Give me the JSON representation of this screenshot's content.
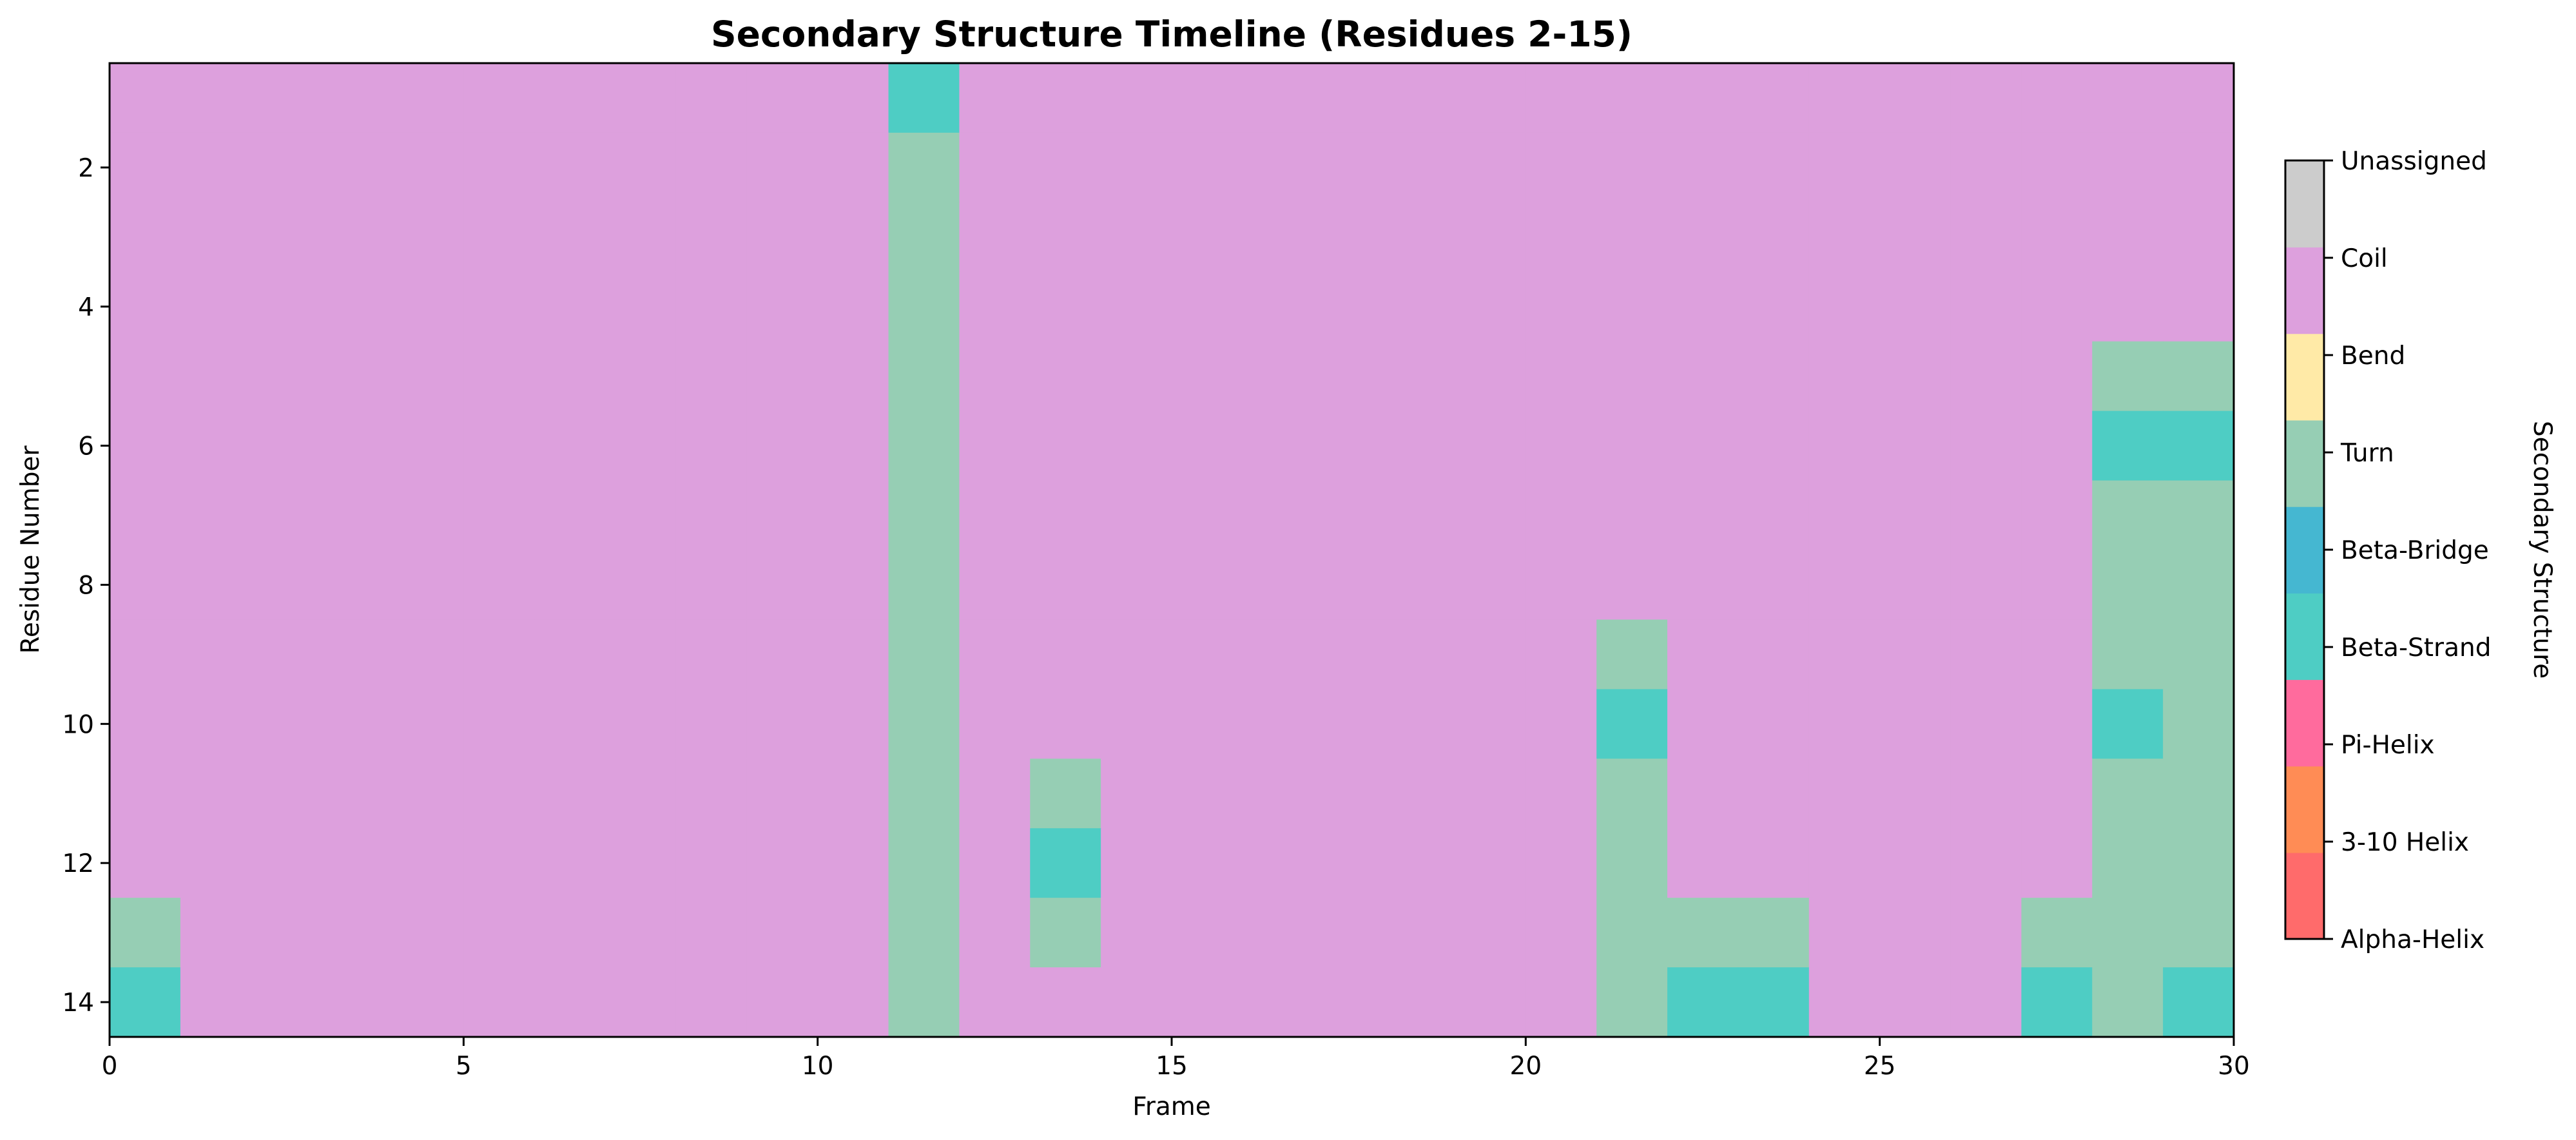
{
  "chart_data": {
    "type": "heatmap",
    "title": "Secondary Structure Timeline (Residues 2-15)",
    "xlabel": "Frame",
    "ylabel": "Residue Number",
    "xlim": [
      0,
      30
    ],
    "ylim": [
      15,
      1
    ],
    "x_ticks": [
      "0",
      "5",
      "10",
      "15",
      "20",
      "25",
      "30"
    ],
    "y_ticks": [
      "2",
      "4",
      "6",
      "8",
      "10",
      "12",
      "14"
    ],
    "frames": 30,
    "residues": [
      1,
      2,
      3,
      4,
      5,
      6,
      7,
      8,
      9,
      10,
      11,
      12,
      13,
      14
    ],
    "grid": false,
    "colorbar": {
      "label": "Secondary Structure",
      "position": "right",
      "categories": [
        {
          "name": "Alpha-Helix",
          "color": "#ff6b6b"
        },
        {
          "name": "3-10 Helix",
          "color": "#ff8c55"
        },
        {
          "name": "Pi-Helix",
          "color": "#ff6b9d"
        },
        {
          "name": "Beta-Strand",
          "color": "#4ecdc4"
        },
        {
          "name": "Beta-Bridge",
          "color": "#45b7d1"
        },
        {
          "name": "Turn",
          "color": "#96ceb4"
        },
        {
          "name": "Bend",
          "color": "#ffeaa7"
        },
        {
          "name": "Coil",
          "color": "#dda0dd"
        },
        {
          "name": "Unassigned",
          "color": "#cccccc"
        }
      ]
    },
    "cells_legend": "rows = residues 1..14, columns = frames 0..29; value = colorbar category",
    "cells": [
      [
        "Coil",
        "Coil",
        "Coil",
        "Coil",
        "Coil",
        "Coil",
        "Coil",
        "Coil",
        "Coil",
        "Coil",
        "Coil",
        "Beta-Strand",
        "Coil",
        "Coil",
        "Coil",
        "Coil",
        "Coil",
        "Coil",
        "Coil",
        "Coil",
        "Coil",
        "Coil",
        "Coil",
        "Coil",
        "Coil",
        "Coil",
        "Coil",
        "Coil",
        "Coil",
        "Coil"
      ],
      [
        "Coil",
        "Coil",
        "Coil",
        "Coil",
        "Coil",
        "Coil",
        "Coil",
        "Coil",
        "Coil",
        "Coil",
        "Coil",
        "Turn",
        "Coil",
        "Coil",
        "Coil",
        "Coil",
        "Coil",
        "Coil",
        "Coil",
        "Coil",
        "Coil",
        "Coil",
        "Coil",
        "Coil",
        "Coil",
        "Coil",
        "Coil",
        "Coil",
        "Coil",
        "Coil"
      ],
      [
        "Coil",
        "Coil",
        "Coil",
        "Coil",
        "Coil",
        "Coil",
        "Coil",
        "Coil",
        "Coil",
        "Coil",
        "Coil",
        "Turn",
        "Coil",
        "Coil",
        "Coil",
        "Coil",
        "Coil",
        "Coil",
        "Coil",
        "Coil",
        "Coil",
        "Coil",
        "Coil",
        "Coil",
        "Coil",
        "Coil",
        "Coil",
        "Coil",
        "Coil",
        "Coil"
      ],
      [
        "Coil",
        "Coil",
        "Coil",
        "Coil",
        "Coil",
        "Coil",
        "Coil",
        "Coil",
        "Coil",
        "Coil",
        "Coil",
        "Turn",
        "Coil",
        "Coil",
        "Coil",
        "Coil",
        "Coil",
        "Coil",
        "Coil",
        "Coil",
        "Coil",
        "Coil",
        "Coil",
        "Coil",
        "Coil",
        "Coil",
        "Coil",
        "Coil",
        "Coil",
        "Coil"
      ],
      [
        "Coil",
        "Coil",
        "Coil",
        "Coil",
        "Coil",
        "Coil",
        "Coil",
        "Coil",
        "Coil",
        "Coil",
        "Coil",
        "Turn",
        "Coil",
        "Coil",
        "Coil",
        "Coil",
        "Coil",
        "Coil",
        "Coil",
        "Coil",
        "Coil",
        "Coil",
        "Coil",
        "Coil",
        "Coil",
        "Coil",
        "Coil",
        "Coil",
        "Turn",
        "Turn"
      ],
      [
        "Coil",
        "Coil",
        "Coil",
        "Coil",
        "Coil",
        "Coil",
        "Coil",
        "Coil",
        "Coil",
        "Coil",
        "Coil",
        "Turn",
        "Coil",
        "Coil",
        "Coil",
        "Coil",
        "Coil",
        "Coil",
        "Coil",
        "Coil",
        "Coil",
        "Coil",
        "Coil",
        "Coil",
        "Coil",
        "Coil",
        "Coil",
        "Coil",
        "Beta-Strand",
        "Beta-Strand"
      ],
      [
        "Coil",
        "Coil",
        "Coil",
        "Coil",
        "Coil",
        "Coil",
        "Coil",
        "Coil",
        "Coil",
        "Coil",
        "Coil",
        "Turn",
        "Coil",
        "Coil",
        "Coil",
        "Coil",
        "Coil",
        "Coil",
        "Coil",
        "Coil",
        "Coil",
        "Coil",
        "Coil",
        "Coil",
        "Coil",
        "Coil",
        "Coil",
        "Coil",
        "Turn",
        "Turn"
      ],
      [
        "Coil",
        "Coil",
        "Coil",
        "Coil",
        "Coil",
        "Coil",
        "Coil",
        "Coil",
        "Coil",
        "Coil",
        "Coil",
        "Turn",
        "Coil",
        "Coil",
        "Coil",
        "Coil",
        "Coil",
        "Coil",
        "Coil",
        "Coil",
        "Coil",
        "Coil",
        "Coil",
        "Coil",
        "Coil",
        "Coil",
        "Coil",
        "Coil",
        "Turn",
        "Turn"
      ],
      [
        "Coil",
        "Coil",
        "Coil",
        "Coil",
        "Coil",
        "Coil",
        "Coil",
        "Coil",
        "Coil",
        "Coil",
        "Coil",
        "Turn",
        "Coil",
        "Coil",
        "Coil",
        "Coil",
        "Coil",
        "Coil",
        "Coil",
        "Coil",
        "Coil",
        "Turn",
        "Coil",
        "Coil",
        "Coil",
        "Coil",
        "Coil",
        "Coil",
        "Turn",
        "Turn"
      ],
      [
        "Coil",
        "Coil",
        "Coil",
        "Coil",
        "Coil",
        "Coil",
        "Coil",
        "Coil",
        "Coil",
        "Coil",
        "Coil",
        "Turn",
        "Coil",
        "Coil",
        "Coil",
        "Coil",
        "Coil",
        "Coil",
        "Coil",
        "Coil",
        "Coil",
        "Beta-Strand",
        "Coil",
        "Coil",
        "Coil",
        "Coil",
        "Coil",
        "Coil",
        "Beta-Strand",
        "Turn"
      ],
      [
        "Coil",
        "Coil",
        "Coil",
        "Coil",
        "Coil",
        "Coil",
        "Coil",
        "Coil",
        "Coil",
        "Coil",
        "Coil",
        "Turn",
        "Coil",
        "Turn",
        "Coil",
        "Coil",
        "Coil",
        "Coil",
        "Coil",
        "Coil",
        "Coil",
        "Turn",
        "Coil",
        "Coil",
        "Coil",
        "Coil",
        "Coil",
        "Coil",
        "Turn",
        "Turn"
      ],
      [
        "Coil",
        "Coil",
        "Coil",
        "Coil",
        "Coil",
        "Coil",
        "Coil",
        "Coil",
        "Coil",
        "Coil",
        "Coil",
        "Turn",
        "Coil",
        "Beta-Strand",
        "Coil",
        "Coil",
        "Coil",
        "Coil",
        "Coil",
        "Coil",
        "Coil",
        "Turn",
        "Coil",
        "Coil",
        "Coil",
        "Coil",
        "Coil",
        "Coil",
        "Turn",
        "Turn"
      ],
      [
        "Turn",
        "Coil",
        "Coil",
        "Coil",
        "Coil",
        "Coil",
        "Coil",
        "Coil",
        "Coil",
        "Coil",
        "Coil",
        "Turn",
        "Coil",
        "Turn",
        "Coil",
        "Coil",
        "Coil",
        "Coil",
        "Coil",
        "Coil",
        "Coil",
        "Turn",
        "Turn",
        "Turn",
        "Coil",
        "Coil",
        "Coil",
        "Turn",
        "Turn",
        "Turn"
      ],
      [
        "Beta-Strand",
        "Coil",
        "Coil",
        "Coil",
        "Coil",
        "Coil",
        "Coil",
        "Coil",
        "Coil",
        "Coil",
        "Coil",
        "Turn",
        "Coil",
        "Coil",
        "Coil",
        "Coil",
        "Coil",
        "Coil",
        "Coil",
        "Coil",
        "Coil",
        "Turn",
        "Beta-Strand",
        "Beta-Strand",
        "Coil",
        "Coil",
        "Coil",
        "Beta-Strand",
        "Turn",
        "Beta-Strand"
      ]
    ]
  }
}
